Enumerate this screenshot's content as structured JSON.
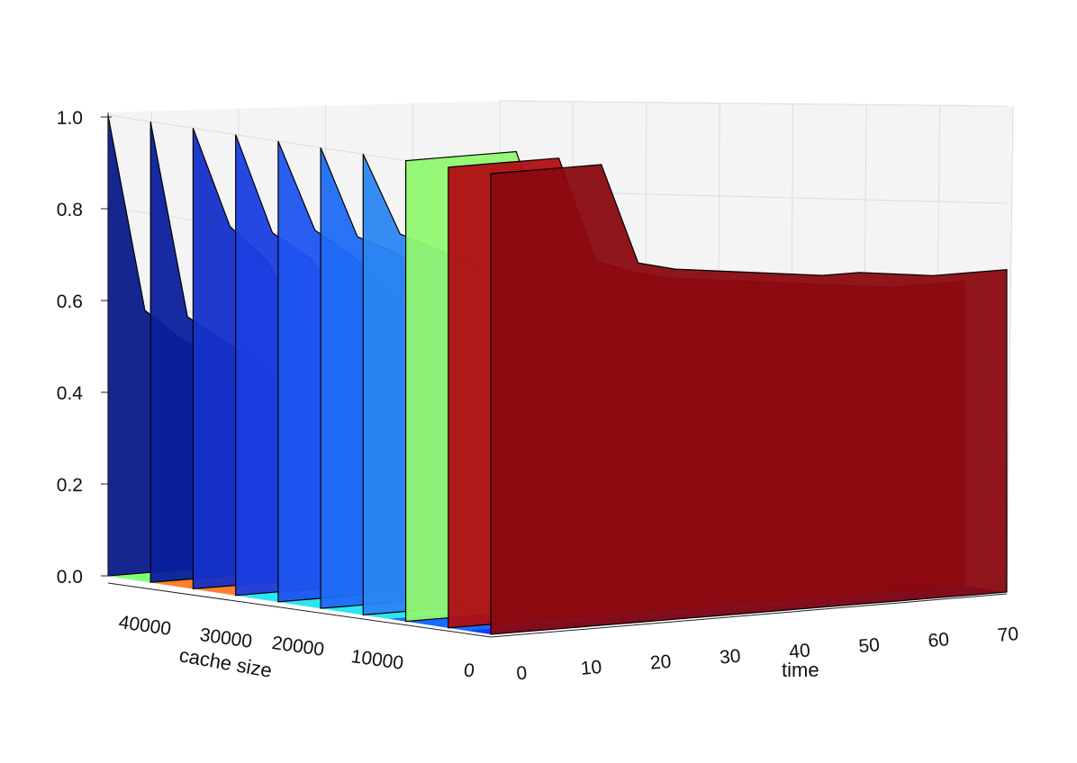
{
  "chart_data": {
    "type": "surface3d",
    "title": "",
    "xlabel": "time",
    "ylabel": "cache size",
    "zlabel": "",
    "x_ticks": [
      "0",
      "10",
      "20",
      "30",
      "40",
      "50",
      "60",
      "70"
    ],
    "y_ticks": [
      "40000",
      "30000",
      "20000",
      "10000",
      "0"
    ],
    "z_ticks": [
      "0.0",
      "0.2",
      "0.4",
      "0.6",
      "0.8",
      "1.0"
    ],
    "xlim": [
      0,
      70
    ],
    "ylim": [
      0,
      45000
    ],
    "zlim": [
      0,
      1.0
    ],
    "grid": true,
    "colormap": "jet",
    "floor_projection": "filled contour",
    "surface": {
      "time": [
        0,
        5,
        10,
        15,
        20,
        25,
        30,
        35,
        40,
        45,
        50,
        55,
        60,
        65,
        70
      ],
      "cache_sizes": [
        45000,
        40000,
        35000,
        30000,
        25000,
        20000,
        15000,
        10000,
        5000,
        0
      ],
      "values": [
        [
          1.0,
          0.57,
          0.5,
          0.45,
          0.3,
          0.08,
          0.08,
          0.08,
          0.08,
          0.08,
          0.08,
          0.08,
          0.08,
          0.08,
          0.08
        ],
        [
          1.0,
          0.57,
          0.51,
          0.46,
          0.31,
          0.1,
          0.09,
          0.09,
          0.09,
          0.09,
          0.09,
          0.09,
          0.09,
          0.09,
          0.09
        ],
        [
          1.0,
          0.78,
          0.7,
          0.55,
          0.45,
          0.33,
          0.28,
          0.22,
          0.18,
          0.14,
          0.11,
          0.09,
          0.09,
          0.09,
          0.09
        ],
        [
          1.0,
          0.78,
          0.72,
          0.62,
          0.52,
          0.45,
          0.4,
          0.35,
          0.3,
          0.25,
          0.2,
          0.15,
          0.12,
          0.1,
          0.1
        ],
        [
          1.0,
          0.8,
          0.74,
          0.66,
          0.58,
          0.5,
          0.44,
          0.4,
          0.36,
          0.32,
          0.26,
          0.2,
          0.16,
          0.12,
          0.12
        ],
        [
          1.0,
          0.8,
          0.76,
          0.7,
          0.62,
          0.55,
          0.5,
          0.46,
          0.42,
          0.38,
          0.32,
          0.26,
          0.22,
          0.18,
          0.16
        ],
        [
          1.0,
          0.82,
          0.78,
          0.74,
          0.68,
          0.6,
          0.56,
          0.52,
          0.48,
          0.44,
          0.38,
          0.32,
          0.28,
          0.24,
          0.2
        ],
        [
          1.0,
          1.0,
          1.0,
          1.0,
          0.76,
          0.72,
          0.7,
          0.68,
          0.66,
          0.64,
          0.63,
          0.62,
          0.62,
          0.62,
          0.62
        ],
        [
          1.0,
          1.0,
          1.0,
          1.0,
          0.77,
          0.74,
          0.72,
          0.71,
          0.7,
          0.69,
          0.68,
          0.67,
          0.66,
          0.66,
          0.66
        ],
        [
          1.0,
          1.0,
          1.0,
          1.0,
          0.78,
          0.76,
          0.75,
          0.74,
          0.73,
          0.72,
          0.72,
          0.71,
          0.7,
          0.7,
          0.7
        ]
      ]
    }
  }
}
